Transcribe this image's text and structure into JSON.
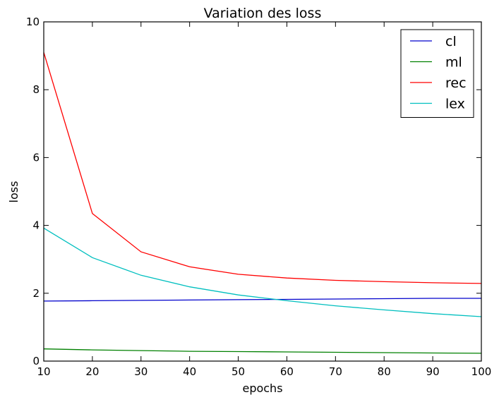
{
  "chart_data": {
    "type": "line",
    "title": "Variation des loss",
    "xlabel": "epochs",
    "ylabel": "loss",
    "xlim": [
      10,
      100
    ],
    "ylim": [
      0,
      10
    ],
    "xticks": [
      10,
      20,
      30,
      40,
      50,
      60,
      70,
      80,
      90,
      100
    ],
    "yticks": [
      0,
      2,
      4,
      6,
      8,
      10
    ],
    "grid": false,
    "legend": "top-right",
    "x": [
      10,
      20,
      30,
      40,
      50,
      60,
      70,
      80,
      90,
      100
    ],
    "series": [
      {
        "name": "cl",
        "color": "#0000cc",
        "values": [
          1.77,
          1.78,
          1.79,
          1.8,
          1.81,
          1.82,
          1.83,
          1.84,
          1.85,
          1.85
        ]
      },
      {
        "name": "ml",
        "color": "#008000",
        "values": [
          0.36,
          0.33,
          0.31,
          0.29,
          0.28,
          0.27,
          0.26,
          0.25,
          0.24,
          0.23
        ]
      },
      {
        "name": "rec",
        "color": "#ff0000",
        "values": [
          9.1,
          4.35,
          3.22,
          2.78,
          2.56,
          2.45,
          2.38,
          2.34,
          2.31,
          2.29
        ]
      },
      {
        "name": "lex",
        "color": "#00bfbf",
        "values": [
          3.92,
          3.05,
          2.53,
          2.19,
          1.95,
          1.78,
          1.63,
          1.51,
          1.4,
          1.31
        ]
      }
    ]
  }
}
